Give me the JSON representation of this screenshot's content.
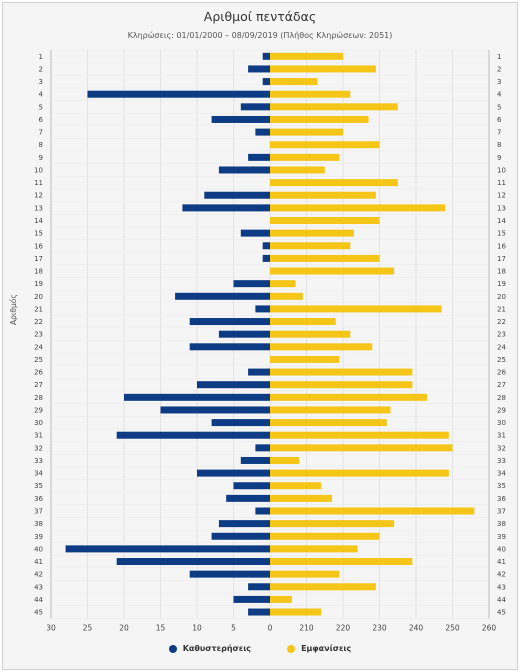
{
  "chart_data": {
    "type": "bar",
    "orientation": "horizontal",
    "title": "Αριθμοί πεντάδας",
    "subtitle": "Κληρώσεις: 01/01/2000 – 08/09/2019 (Πλήθος Κληρώσεων: 2051)",
    "ylabel": "Αριθμός",
    "categories": [
      "1",
      "2",
      "3",
      "4",
      "5",
      "6",
      "7",
      "8",
      "9",
      "10",
      "11",
      "12",
      "13",
      "14",
      "15",
      "16",
      "17",
      "18",
      "19",
      "20",
      "21",
      "22",
      "23",
      "24",
      "25",
      "26",
      "27",
      "28",
      "29",
      "30",
      "31",
      "32",
      "33",
      "34",
      "35",
      "36",
      "37",
      "38",
      "39",
      "40",
      "41",
      "42",
      "43",
      "44",
      "45"
    ],
    "x_tick_labels": [
      "30",
      "25",
      "20",
      "15",
      "10",
      "5",
      "0",
      "210",
      "220",
      "230",
      "240",
      "250",
      "260"
    ],
    "series": [
      {
        "name": "Καθυστερήσεις",
        "color": "#0d3b84",
        "values": [
          1,
          3,
          1,
          25,
          4,
          8,
          2,
          0,
          3,
          7,
          0,
          9,
          12,
          0,
          4,
          1,
          1,
          0,
          5,
          13,
          2,
          11,
          7,
          11,
          0,
          3,
          10,
          20,
          15,
          8,
          21,
          2,
          4,
          10,
          5,
          6,
          2,
          7,
          8,
          28,
          21,
          11,
          3,
          5,
          3
        ]
      },
      {
        "name": "Εμφανίσεις",
        "color": "#f5c518",
        "values": [
          220,
          229,
          213,
          222,
          235,
          227,
          220,
          230,
          219,
          215,
          235,
          229,
          248,
          230,
          223,
          222,
          230,
          234,
          207,
          209,
          247,
          218,
          222,
          228,
          219,
          239,
          239,
          243,
          233,
          232,
          249,
          250,
          208,
          249,
          214,
          217,
          256,
          234,
          230,
          224,
          239,
          219,
          229,
          206,
          214
        ]
      }
    ],
    "series1_axis_range": [
      0,
      30
    ],
    "series2_axis_range": [
      200,
      260
    ],
    "grid": true,
    "legend_position": "bottom"
  },
  "legend": {
    "item1": "Καθυστερήσεις",
    "item2": "Εμφανίσεις"
  }
}
